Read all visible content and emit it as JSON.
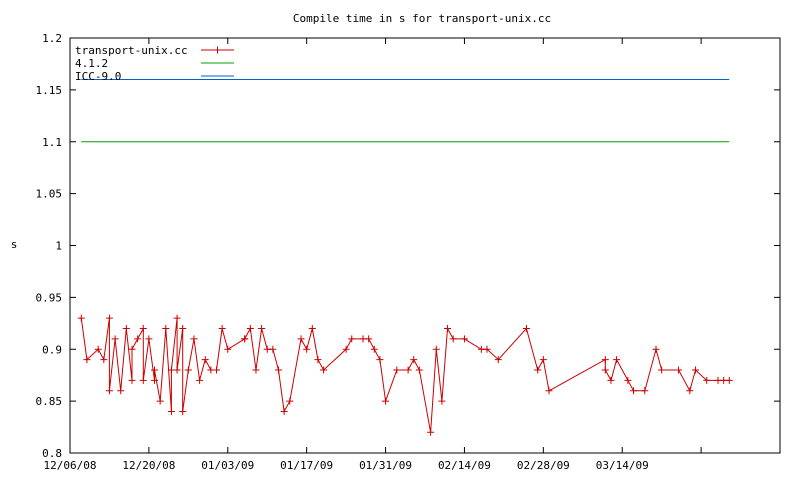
{
  "chart_data": {
    "type": "line",
    "title": "Compile time in s for transport-unix.cc",
    "xlabel": "",
    "ylabel": "s",
    "ylim": [
      0.8,
      1.2
    ],
    "yticks": [
      "0.8",
      "0.85",
      "0.9",
      "0.95",
      "1",
      "1.05",
      "1.1",
      "1.15",
      "1.2"
    ],
    "xlim": [
      "2008-12-06",
      "2009-04-11"
    ],
    "xticks": [
      "12/06/08",
      "12/20/08",
      "01/03/09",
      "01/17/09",
      "01/31/09",
      "02/14/09",
      "02/28/09",
      "03/14/09"
    ],
    "grid": false,
    "legend_position": "top-left",
    "series": [
      {
        "name": "transport-unix.cc",
        "color": "#cc0000",
        "marker": "plus",
        "x": [
          "2008-12-08",
          "2008-12-09",
          "2008-12-11",
          "2008-12-12",
          "2008-12-13",
          "2008-12-13",
          "2008-12-14",
          "2008-12-15",
          "2008-12-16",
          "2008-12-17",
          "2008-12-17",
          "2008-12-18",
          "2008-12-19",
          "2008-12-19",
          "2008-12-20",
          "2008-12-21",
          "2008-12-21",
          "2008-12-22",
          "2008-12-23",
          "2008-12-24",
          "2008-12-24",
          "2008-12-25",
          "2008-12-25",
          "2008-12-26",
          "2008-12-26",
          "2008-12-27",
          "2008-12-28",
          "2008-12-29",
          "2008-12-30",
          "2008-12-31",
          "2009-01-01",
          "2009-01-02",
          "2009-01-03",
          "2009-01-06",
          "2009-01-06",
          "2009-01-07",
          "2009-01-08",
          "2009-01-09",
          "2009-01-10",
          "2009-01-11",
          "2009-01-12",
          "2009-01-13",
          "2009-01-14",
          "2009-01-16",
          "2009-01-17",
          "2009-01-18",
          "2009-01-19",
          "2009-01-20",
          "2009-01-24",
          "2009-01-25",
          "2009-01-27",
          "2009-01-28",
          "2009-01-29",
          "2009-01-30",
          "2009-01-31",
          "2009-02-02",
          "2009-02-04",
          "2009-02-05",
          "2009-02-06",
          "2009-02-08",
          "2009-02-09",
          "2009-02-10",
          "2009-02-11",
          "2009-02-12",
          "2009-02-14",
          "2009-02-17",
          "2009-02-18",
          "2009-02-20",
          "2009-02-25",
          "2009-02-27",
          "2009-02-28",
          "2009-03-01",
          "2009-03-11",
          "2009-03-11",
          "2009-03-12",
          "2009-03-13",
          "2009-03-15",
          "2009-03-16",
          "2009-03-18",
          "2009-03-20",
          "2009-03-21",
          "2009-03-24",
          "2009-03-26",
          "2009-03-27",
          "2009-03-29",
          "2009-03-31",
          "2009-04-01",
          "2009-04-02"
        ],
        "y": [
          0.93,
          0.89,
          0.9,
          0.89,
          0.93,
          0.86,
          0.91,
          0.86,
          0.92,
          0.87,
          0.9,
          0.91,
          0.92,
          0.87,
          0.91,
          0.87,
          0.88,
          0.85,
          0.92,
          0.84,
          0.88,
          0.93,
          0.88,
          0.92,
          0.84,
          0.88,
          0.91,
          0.87,
          0.89,
          0.88,
          0.88,
          0.92,
          0.9,
          0.91,
          0.91,
          0.92,
          0.88,
          0.92,
          0.9,
          0.9,
          0.88,
          0.84,
          0.85,
          0.91,
          0.9,
          0.92,
          0.89,
          0.88,
          0.9,
          0.91,
          0.91,
          0.91,
          0.9,
          0.89,
          0.85,
          0.88,
          0.88,
          0.89,
          0.88,
          0.82,
          0.9,
          0.85,
          0.92,
          0.91,
          0.91,
          0.9,
          0.9,
          0.89,
          0.92,
          0.88,
          0.89,
          0.86,
          0.89,
          0.88,
          0.87,
          0.89,
          0.87,
          0.86,
          0.86,
          0.9,
          0.88,
          0.88,
          0.86,
          0.88,
          0.87,
          0.87,
          0.87,
          0.87
        ]
      },
      {
        "name": "4.1.2",
        "color": "#00a000",
        "marker": "none",
        "x": [
          "2008-12-08",
          "2009-04-02"
        ],
        "y": [
          1.1,
          1.1
        ]
      },
      {
        "name": "ICC-9.0",
        "color": "#0060d0",
        "marker": "none",
        "x": [
          "2008-12-08",
          "2009-04-02"
        ],
        "y": [
          1.16,
          1.16
        ]
      }
    ]
  }
}
